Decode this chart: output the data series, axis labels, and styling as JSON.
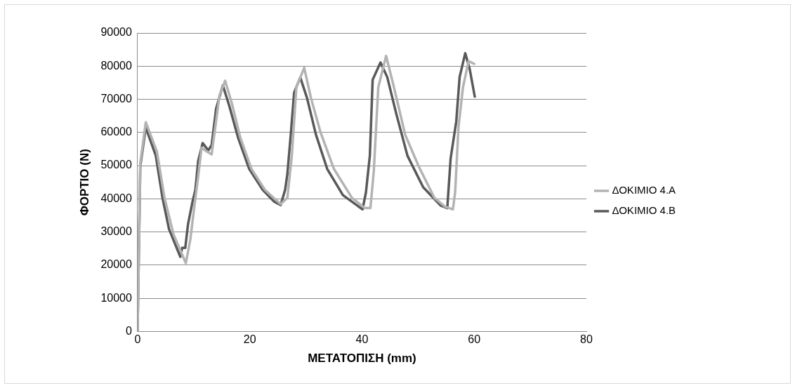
{
  "chart_data": {
    "type": "line",
    "xlabel": "ΜΕΤΑΤΟΠΙΣΗ (mm)",
    "ylabel": "ΦΟΡΤΙΟ (N)",
    "xlim": [
      0,
      80
    ],
    "xticks": [
      0,
      20,
      40,
      60,
      80
    ],
    "ylim": [
      0,
      90000
    ],
    "yticks": [
      0,
      10000,
      20000,
      30000,
      40000,
      50000,
      60000,
      70000,
      80000,
      90000
    ],
    "grid": "y",
    "legend": "right",
    "marker": "none",
    "line_style": "solid",
    "series": [
      {
        "name": "ΔΟΚΙΜΙΟ 4.A",
        "color": "#b3b3b3",
        "x": [
          0,
          0.5,
          1.46,
          3.45,
          4.8,
          6.4,
          8.6,
          9.4,
          10.2,
          10.8,
          11.4,
          12.4,
          13.2,
          13.8,
          14.6,
          15.6,
          16.8,
          18.3,
          20.3,
          22.7,
          24.7,
          25.5,
          26.7,
          27.1,
          27.5,
          28.3,
          29.7,
          30.9,
          32.6,
          35,
          38.2,
          40.5,
          41.5,
          42.1,
          42.9,
          44.3,
          45.7,
          47.7,
          50.1,
          52.9,
          54.8,
          56.2,
          56.6,
          57.2,
          58,
          59,
          60
        ],
        "values": [
          0,
          51000,
          63100,
          54200,
          40300,
          29300,
          20600,
          27700,
          38800,
          46700,
          55400,
          54200,
          53400,
          60900,
          71200,
          75600,
          68800,
          58500,
          49000,
          42700,
          39600,
          38400,
          40300,
          46700,
          53000,
          73600,
          79500,
          70400,
          60100,
          49000,
          40300,
          37200,
          37200,
          48300,
          73600,
          83100,
          73600,
          59300,
          49800,
          40300,
          37600,
          36800,
          41900,
          61700,
          73600,
          81500,
          80700
        ]
      },
      {
        "name": "ΔΟΚΙΜΙΟ 4.B",
        "color": "#595959",
        "x": [
          0,
          0.48,
          1.46,
          3.25,
          4.44,
          5.6,
          7.62,
          7.94,
          8.5,
          9,
          9.8,
          10.3,
          10.8,
          11.6,
          12.6,
          13.2,
          14,
          15.2,
          16.35,
          17.9,
          19.9,
          22.3,
          24.3,
          25.5,
          26.3,
          26.7,
          27.3,
          27.9,
          29,
          30.2,
          31.8,
          33.8,
          36.6,
          40.1,
          40.7,
          41.4,
          41.9,
          43.3,
          44.5,
          46.1,
          48.1,
          50.9,
          54,
          55.2,
          55.8,
          56.8,
          57.4,
          58.4,
          59.2,
          60.1
        ],
        "values": [
          0,
          49800,
          61500,
          53000,
          40300,
          30900,
          22500,
          25200,
          25200,
          32400,
          39200,
          42700,
          51400,
          56800,
          54600,
          56200,
          67200,
          74200,
          68000,
          58500,
          49000,
          42700,
          39200,
          38100,
          42700,
          47500,
          59300,
          72000,
          76600,
          70400,
          59300,
          49000,
          41100,
          36800,
          41900,
          53000,
          75900,
          81100,
          76700,
          65700,
          53000,
          43500,
          38000,
          37200,
          52200,
          63300,
          76700,
          83900,
          79100,
          70800
        ]
      }
    ]
  }
}
